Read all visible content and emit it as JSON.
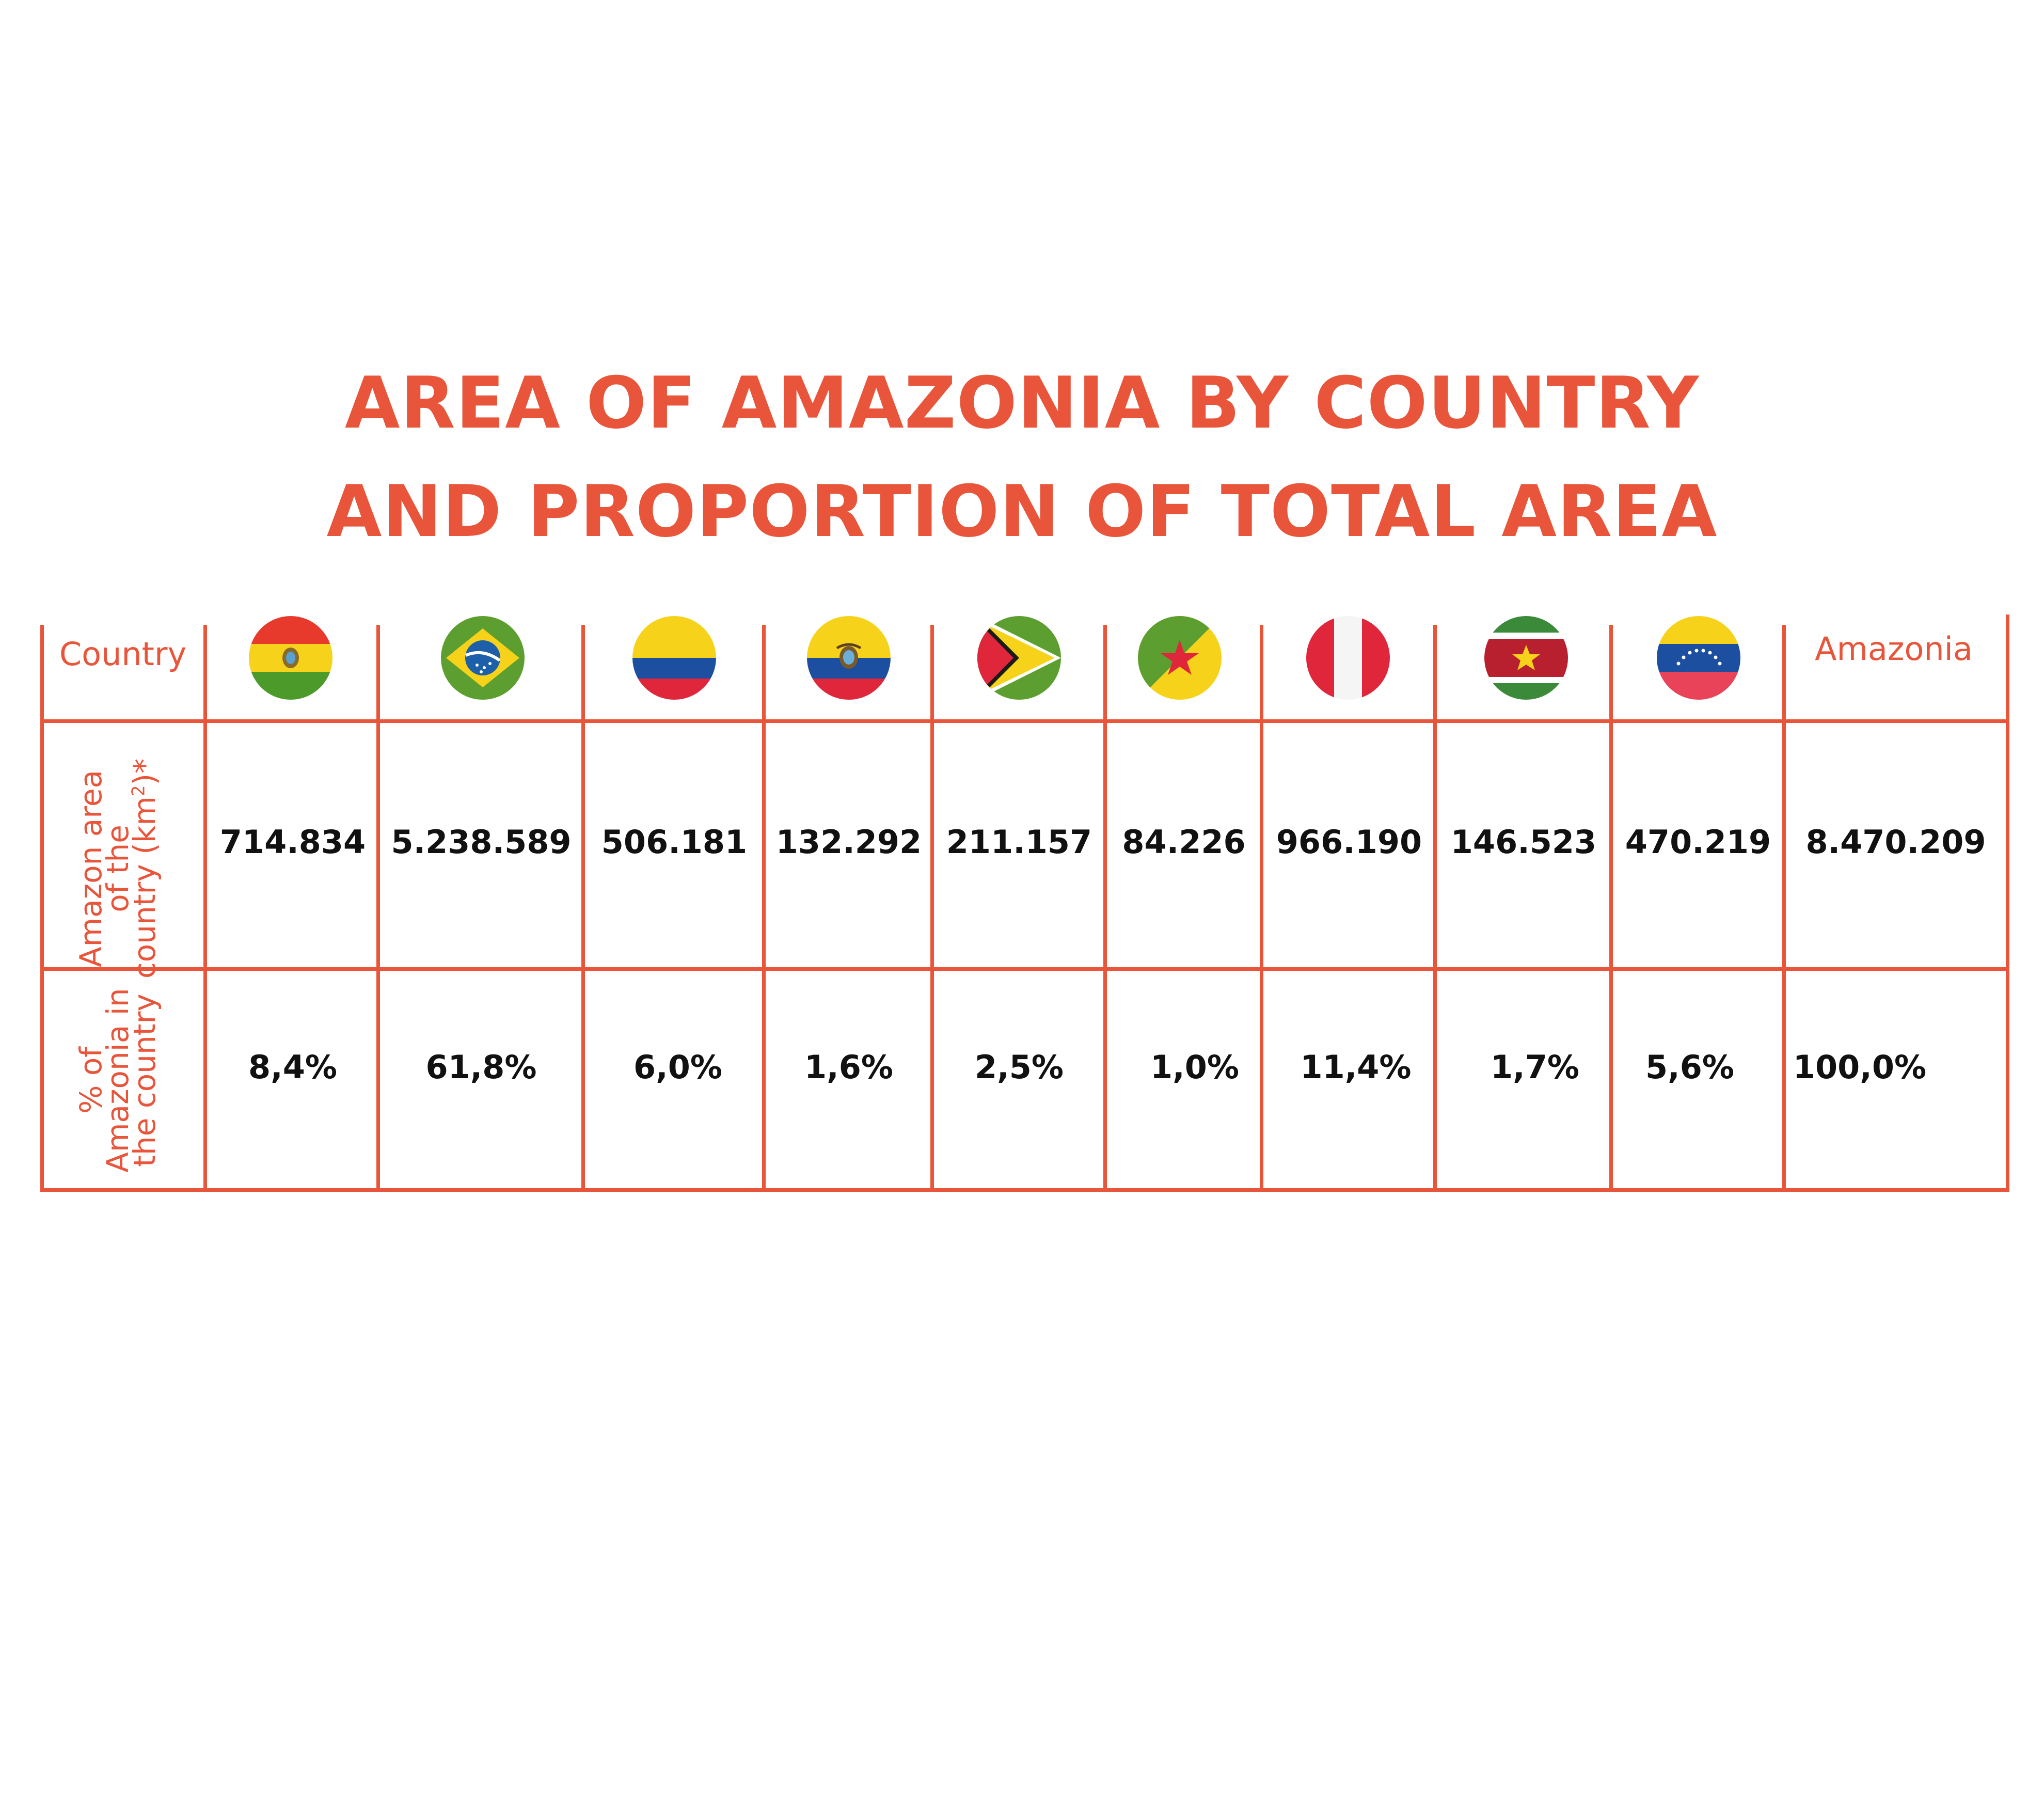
{
  "title": {
    "line1": "AREA OF AMAZONIA BY COUNTRY",
    "line2": "AND PROPORTION OF TOTAL AREA"
  },
  "header": {
    "country_label": "Country",
    "total_label": "Amazonia"
  },
  "row_labels": {
    "area_line1": "Amazon area",
    "area_line2": "of the",
    "area_line3": "country (km",
    "area_sup": "2",
    "area_suffix": ")*",
    "pct_line1": "% of",
    "pct_line2": "Amazonia in",
    "pct_line3": "the country"
  },
  "flags": [
    {
      "icon": "flag-bolivia-icon",
      "colors": [
        "#e73a2c",
        "#f6d21a",
        "#4b9a2a"
      ]
    },
    {
      "icon": "flag-brazil-icon",
      "colors": [
        "#5c9e2f",
        "#f6d21a",
        "#1d5fa8"
      ]
    },
    {
      "icon": "flag-colombia-icon",
      "colors": [
        "#f6d21a",
        "#1d4fa0",
        "#e0263a"
      ]
    },
    {
      "icon": "flag-ecuador-icon",
      "colors": [
        "#f6d21a",
        "#1d4fa0",
        "#e0263a"
      ]
    },
    {
      "icon": "flag-guyana-icon",
      "colors": [
        "#5c9e2f",
        "#f6d21a",
        "#e0263a"
      ]
    },
    {
      "icon": "flag-french-guiana-icon",
      "colors": [
        "#5c9e2f",
        "#f6d21a",
        "#e0263a"
      ]
    },
    {
      "icon": "flag-peru-icon",
      "colors": [
        "#e0263a",
        "#ffffff"
      ]
    },
    {
      "icon": "flag-suriname-icon",
      "colors": [
        "#3b8a3a",
        "#b9202f",
        "#f6d21a"
      ]
    },
    {
      "icon": "flag-venezuela-icon",
      "colors": [
        "#f6d21a",
        "#1d4fa0",
        "#e9435a"
      ]
    }
  ],
  "chart_data": {
    "type": "table",
    "title": "AREA OF AMAZONIA BY COUNTRY AND PROPORTION OF TOTAL AREA",
    "columns": [
      "Bolivia",
      "Brazil",
      "Colombia",
      "Ecuador",
      "Guyana",
      "French Guiana",
      "Peru",
      "Suriname",
      "Venezuela",
      "Amazonia"
    ],
    "area_km2": [
      "714.834",
      "5.238.589",
      "506.181",
      "132.292",
      "211.157",
      "84.226",
      "966.190",
      "146.523",
      "470.219",
      "8.470.209"
    ],
    "percent": [
      "8,4%",
      "61,8%",
      "6,0%",
      "1,6%",
      "2,5%",
      "1,0%",
      "11,4%",
      "1,7%",
      "5,6%",
      "100,0%"
    ]
  },
  "colors": {
    "accent": "#e8553a",
    "text": "#111111"
  }
}
